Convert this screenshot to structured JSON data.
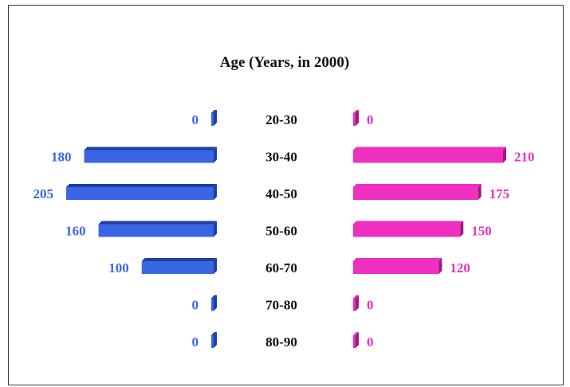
{
  "chart_data": {
    "type": "bar",
    "title": "Age (Years, in 2000)",
    "categories": [
      "20-30",
      "30-40",
      "40-50",
      "50-60",
      "60-70",
      "70-80",
      "80-90"
    ],
    "series": [
      {
        "side": "left",
        "color": "#3a66e6",
        "shade": "#1f3f9e",
        "values": [
          0,
          180,
          205,
          160,
          100,
          0,
          0
        ]
      },
      {
        "side": "right",
        "color": "#ee2fc0",
        "shade": "#9e1a7e",
        "values": [
          0,
          210,
          175,
          150,
          120,
          0,
          0
        ]
      }
    ],
    "xlim": [
      0,
      210
    ],
    "grid": false,
    "legend": "none"
  }
}
